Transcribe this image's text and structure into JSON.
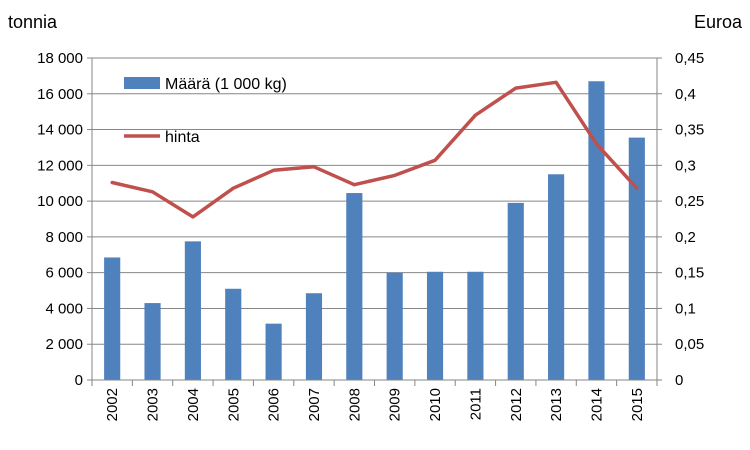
{
  "chart_data": {
    "type": "bar",
    "categories": [
      "2002",
      "2003",
      "2004",
      "2005",
      "2006",
      "2007",
      "2008",
      "2009",
      "2010",
      "2011",
      "2012",
      "2013",
      "2014",
      "2015"
    ],
    "series": [
      {
        "name": "Määrä (1 000 kg)",
        "type": "bar",
        "axis": "left",
        "color": "#4f81bd",
        "values": [
          6850,
          4300,
          7750,
          5100,
          3150,
          4850,
          10450,
          6000,
          6050,
          6050,
          9900,
          11500,
          16700,
          13550
        ]
      },
      {
        "name": "hinta",
        "type": "line",
        "axis": "right",
        "color": "#c0504d",
        "values": [
          0.276,
          0.263,
          0.228,
          0.268,
          0.293,
          0.298,
          0.273,
          0.286,
          0.307,
          0.37,
          0.408,
          0.416,
          0.33,
          0.268
        ]
      }
    ],
    "ylabel_left": "tonnia",
    "ylabel_right": "Euroa",
    "ylim_left": [
      0,
      18000
    ],
    "ylim_right": [
      0,
      0.45
    ],
    "yticks_left": [
      "0",
      "2 000",
      "4 000",
      "6 000",
      "8 000",
      "10 000",
      "12 000",
      "14 000",
      "16 000",
      "18 000"
    ],
    "yticks_right": [
      "0",
      "0,05",
      "0,1",
      "0,15",
      "0,2",
      "0,25",
      "0,3",
      "0,35",
      "0,4",
      "0,45"
    ],
    "grid": true,
    "legend_position": "top-left"
  }
}
